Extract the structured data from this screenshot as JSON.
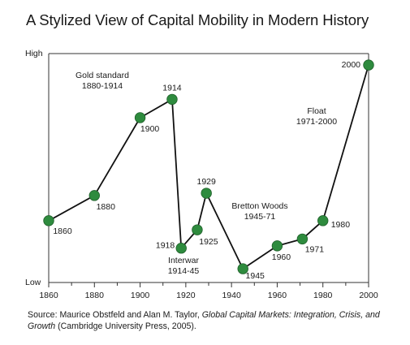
{
  "page": {
    "title": "A Stylized View of Capital Mobility in Modern History",
    "source": {
      "prefix": "Source: Maurice Obstfeld and Alan M. Taylor, ",
      "italic": "Global Capital Markets: Integration, Crisis, and Growth",
      "suffix": " (Cambridge University Press, 2005)."
    }
  },
  "chart_data": {
    "type": "line",
    "title": "A Stylized View of Capital Mobility in Modern History",
    "xlabel": "",
    "ylabel": "",
    "xlim": [
      1860,
      2000
    ],
    "ylim": [
      0,
      1
    ],
    "x_ticks": [
      1860,
      1880,
      1900,
      1920,
      1940,
      1960,
      1980,
      2000
    ],
    "y_tick_labels": {
      "high": "High",
      "low": "Low"
    },
    "grid": false,
    "legend": "none",
    "color": "#2e8b3e",
    "series": [
      {
        "points": [
          {
            "x": 1860,
            "y": 0.27,
            "label": "1860"
          },
          {
            "x": 1880,
            "y": 0.38,
            "label": "1880"
          },
          {
            "x": 1900,
            "y": 0.72,
            "label": "1900"
          },
          {
            "x": 1914,
            "y": 0.8,
            "label": "1914"
          },
          {
            "x": 1918,
            "y": 0.15,
            "label": "1918"
          },
          {
            "x": 1925,
            "y": 0.23,
            "label": "1925"
          },
          {
            "x": 1929,
            "y": 0.39,
            "label": "1929"
          },
          {
            "x": 1945,
            "y": 0.06,
            "label": "1945"
          },
          {
            "x": 1960,
            "y": 0.16,
            "label": "1960"
          },
          {
            "x": 1971,
            "y": 0.19,
            "label": "1971"
          },
          {
            "x": 1980,
            "y": 0.27,
            "label": "1980"
          },
          {
            "x": 2000,
            "y": 0.95,
            "label": "2000"
          }
        ]
      }
    ],
    "annotations": [
      {
        "lines": [
          "Gold standard",
          "1880-1914"
        ]
      },
      {
        "lines": [
          "Interwar",
          "1914-45"
        ]
      },
      {
        "lines": [
          "Bretton Woods",
          "1945-71"
        ]
      },
      {
        "lines": [
          "Float",
          "1971-2000"
        ]
      }
    ]
  }
}
